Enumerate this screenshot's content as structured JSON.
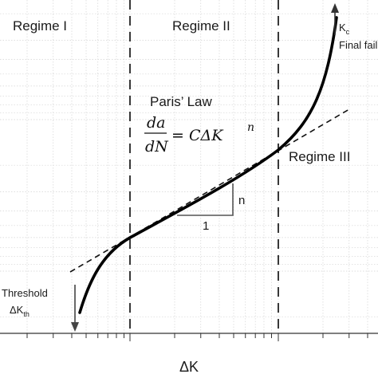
{
  "diagram": {
    "regimes": [
      {
        "label": "Regime I"
      },
      {
        "label": "Regime II"
      },
      {
        "label": "Regime III"
      }
    ],
    "law_title": "Paris’ Law",
    "formula": {
      "numerator": "da",
      "denominator": "dN",
      "rhs": "= CΔK",
      "exponent": "n"
    },
    "slope_triangle": {
      "rise_label": "n",
      "run_label": "1"
    },
    "threshold": {
      "line1": "Threshold",
      "symbol": "ΔK",
      "subscript": "th"
    },
    "final_failure": {
      "symbol": "K",
      "subscript": "c",
      "text": "Final failure"
    },
    "x_axis_label": "ΔK",
    "colors": {
      "curve": "#000000",
      "grid": "#cfcfcf",
      "axis": "#333333"
    }
  }
}
